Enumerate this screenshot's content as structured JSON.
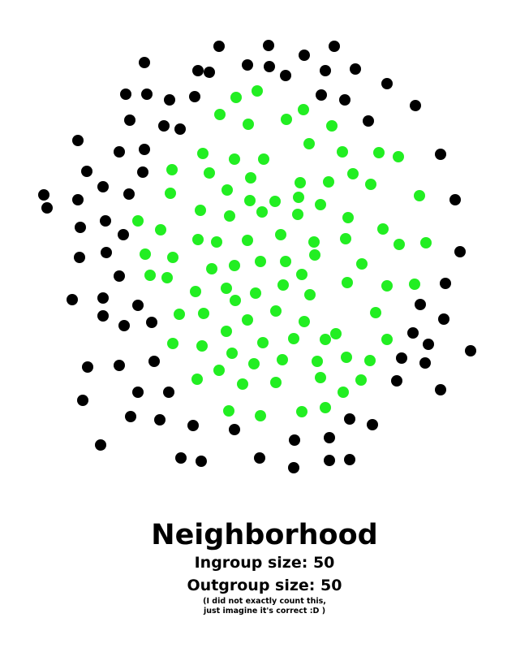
{
  "title": "Neighborhood",
  "ingroup_label": "Ingroup size: 50",
  "outgroup_label": "Outgroup size: 50",
  "note_line1": "(I did not exactly count this,",
  "note_line2": "just imagine it's correct :D )",
  "groups": {
    "ingroup": {
      "size": 50,
      "color": "#22ee22"
    },
    "outgroup": {
      "size": 50,
      "color": "#000000"
    }
  }
}
